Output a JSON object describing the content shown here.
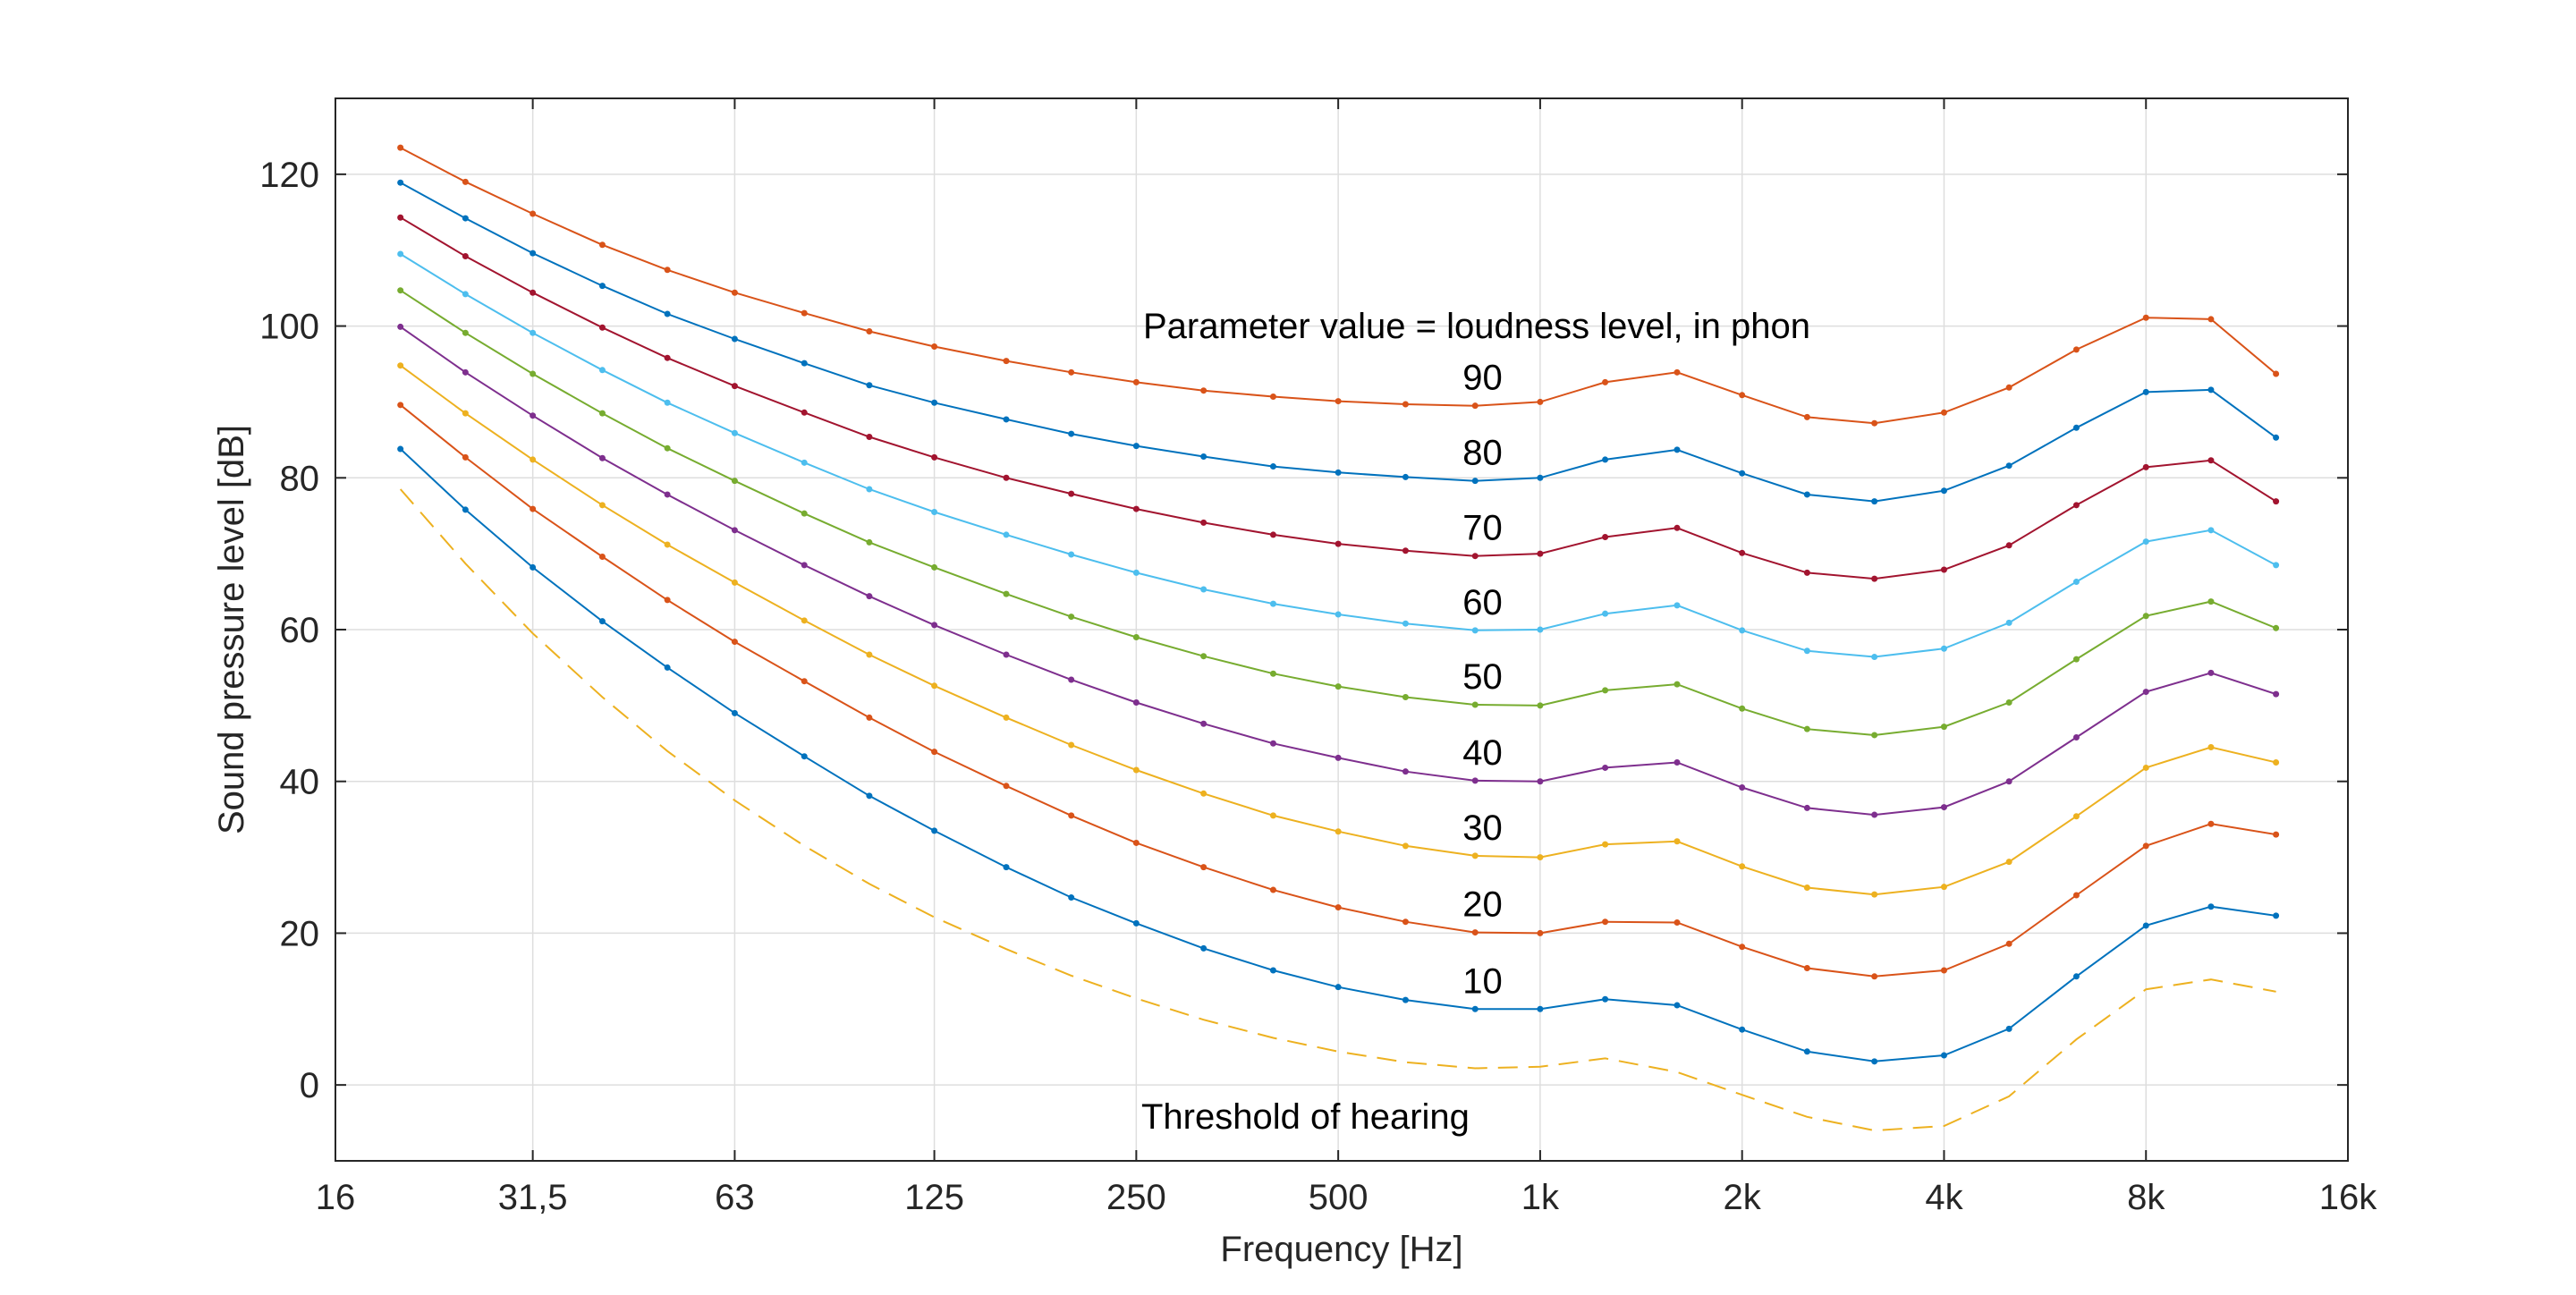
{
  "chart_data": {
    "type": "line",
    "xlabel": "Frequency   [Hz]",
    "ylabel": "Sound pressure level   [dB]",
    "xscale": "log2",
    "xlim": [
      16,
      16000
    ],
    "ylim": [
      -10,
      130
    ],
    "grid": true,
    "x_tick_labels": [
      "16",
      "31,5",
      "63",
      "125",
      "250",
      "500",
      "1k",
      "2k",
      "4k",
      "8k",
      "16k"
    ],
    "x_tick_values": [
      16,
      31.5,
      63,
      125,
      250,
      500,
      1000,
      2000,
      4000,
      8000,
      16000
    ],
    "y_ticks": [
      0,
      20,
      40,
      60,
      80,
      100,
      120
    ],
    "x": [
      20,
      25,
      31.5,
      40,
      50,
      63,
      80,
      100,
      125,
      160,
      200,
      250,
      315,
      400,
      500,
      630,
      800,
      1000,
      1250,
      1600,
      2000,
      2500,
      3150,
      4000,
      5000,
      6300,
      8000,
      10000,
      12500
    ],
    "series": [
      {
        "label": "90",
        "color": "#d95319",
        "dashed": false,
        "values": [
          123.5,
          119.0,
          114.8,
          110.7,
          107.4,
          104.4,
          101.7,
          99.3,
          97.3,
          95.4,
          93.9,
          92.6,
          91.5,
          90.7,
          90.1,
          89.7,
          89.5,
          90.0,
          92.6,
          93.9,
          90.9,
          88.0,
          87.2,
          88.6,
          91.9,
          96.9,
          101.1,
          100.9,
          93.7
        ]
      },
      {
        "label": "80",
        "color": "#0072bd",
        "dashed": false,
        "values": [
          118.9,
          114.2,
          109.6,
          105.3,
          101.6,
          98.3,
          95.1,
          92.2,
          89.9,
          87.7,
          85.8,
          84.2,
          82.8,
          81.5,
          80.7,
          80.1,
          79.6,
          80.0,
          82.4,
          83.7,
          80.6,
          77.8,
          76.9,
          78.3,
          81.6,
          86.6,
          91.3,
          91.6,
          85.3
        ]
      },
      {
        "label": "70",
        "color": "#a2142f",
        "dashed": false,
        "values": [
          114.3,
          109.2,
          104.4,
          99.8,
          95.8,
          92.1,
          88.6,
          85.4,
          82.7,
          80.0,
          77.9,
          75.9,
          74.1,
          72.5,
          71.3,
          70.4,
          69.7,
          70.0,
          72.2,
          73.4,
          70.1,
          67.5,
          66.7,
          67.9,
          71.1,
          76.4,
          81.4,
          82.3,
          76.9
        ]
      },
      {
        "label": "60",
        "color": "#4dbeee",
        "dashed": false,
        "values": [
          109.5,
          104.2,
          99.1,
          94.2,
          89.9,
          85.9,
          82.0,
          78.5,
          75.5,
          72.5,
          69.9,
          67.5,
          65.3,
          63.4,
          62.0,
          60.8,
          59.9,
          60.0,
          62.1,
          63.2,
          59.9,
          57.2,
          56.4,
          57.5,
          60.9,
          66.3,
          71.6,
          73.1,
          68.5
        ]
      },
      {
        "label": "50",
        "color": "#77ac30",
        "dashed": false,
        "values": [
          104.7,
          99.1,
          93.7,
          88.5,
          83.9,
          79.6,
          75.3,
          71.5,
          68.2,
          64.7,
          61.7,
          59.0,
          56.5,
          54.2,
          52.5,
          51.1,
          50.1,
          50.0,
          52.0,
          52.8,
          49.6,
          46.9,
          46.1,
          47.2,
          50.4,
          56.1,
          61.8,
          63.7,
          60.2
        ]
      },
      {
        "label": "40",
        "color": "#7e2f8e",
        "dashed": false,
        "values": [
          99.9,
          93.9,
          88.2,
          82.6,
          77.8,
          73.1,
          68.5,
          64.4,
          60.6,
          56.7,
          53.4,
          50.4,
          47.6,
          45.0,
          43.1,
          41.3,
          40.1,
          40.0,
          41.8,
          42.5,
          39.2,
          36.5,
          35.6,
          36.6,
          40.0,
          45.8,
          51.8,
          54.3,
          51.5
        ]
      },
      {
        "label": "30",
        "color": "#edb120",
        "dashed": false,
        "values": [
          94.8,
          88.5,
          82.4,
          76.4,
          71.2,
          66.2,
          61.2,
          56.7,
          52.6,
          48.4,
          44.8,
          41.5,
          38.4,
          35.5,
          33.4,
          31.5,
          30.2,
          30.0,
          31.7,
          32.1,
          28.8,
          26.0,
          25.1,
          26.1,
          29.4,
          35.4,
          41.8,
          44.5,
          42.5
        ]
      },
      {
        "label": "20",
        "color": "#d95319",
        "dashed": false,
        "values": [
          89.6,
          82.7,
          75.9,
          69.6,
          63.9,
          58.4,
          53.2,
          48.4,
          43.9,
          39.4,
          35.5,
          31.9,
          28.7,
          25.7,
          23.4,
          21.5,
          20.1,
          20.0,
          21.5,
          21.4,
          18.2,
          15.4,
          14.3,
          15.1,
          18.6,
          25.0,
          31.5,
          34.4,
          33.0
        ]
      },
      {
        "label": "10",
        "color": "#0072bd",
        "dashed": false,
        "values": [
          83.8,
          75.8,
          68.2,
          61.1,
          55.0,
          49.0,
          43.3,
          38.1,
          33.5,
          28.7,
          24.7,
          21.3,
          18.0,
          15.1,
          12.9,
          11.2,
          10.0,
          10.0,
          11.3,
          10.5,
          7.3,
          4.4,
          3.1,
          3.9,
          7.4,
          14.3,
          21.0,
          23.5,
          22.3
        ]
      },
      {
        "label": "Threshold of hearing",
        "color": "#edb120",
        "dashed": true,
        "values": [
          78.5,
          68.7,
          59.5,
          51.1,
          44.0,
          37.5,
          31.5,
          26.5,
          22.1,
          17.9,
          14.4,
          11.4,
          8.6,
          6.2,
          4.4,
          3.0,
          2.2,
          2.4,
          3.5,
          1.7,
          -1.3,
          -4.2,
          -6.0,
          -5.4,
          -1.5,
          6.0,
          12.6,
          13.9,
          12.3
        ]
      }
    ],
    "annotations": {
      "parameter_note": "Parameter value = loudness level, in phon",
      "threshold_label": "Threshold of hearing"
    }
  }
}
